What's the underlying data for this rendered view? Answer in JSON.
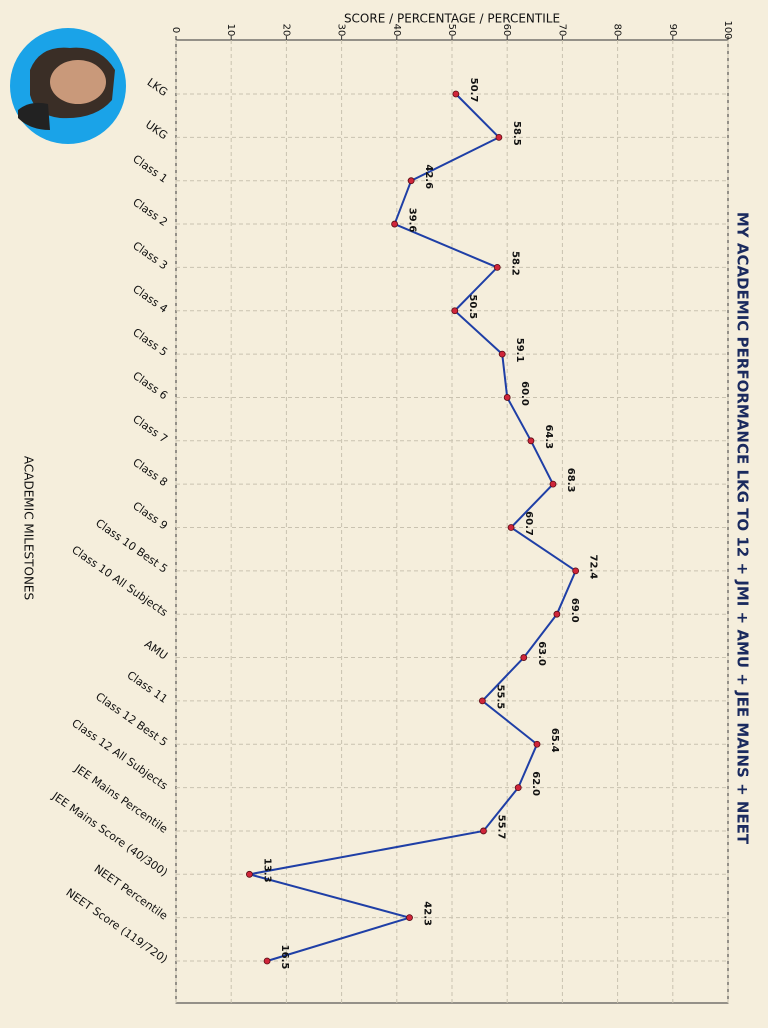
{
  "chart_data": {
    "type": "line",
    "title": "MY ACADEMIC PERFORMANCE LKG TO 12 + JMI + AMU + JEE MAINS + NEET",
    "y_label": "SCORE / PERCENTAGE / PERCENTILE",
    "x_label": "ACADEMIC MILESTONES",
    "categories": [
      "LKG",
      "UKG",
      "Class 1",
      "Class 2",
      "Class 3",
      "Class 4",
      "Class 5",
      "Class 6",
      "Class 7",
      "Class 8",
      "Class 9",
      "Class 10 Best 5",
      "Class 10 All Subjects",
      "AMU",
      "Class 11",
      "Class 12 Best 5",
      "Class 12 All Subjects",
      "JEE Mains Percentile",
      "JEE Mains Score (40/300)",
      "NEET Percentile",
      "NEET Score (119/720)"
    ],
    "values": [
      50.7,
      58.5,
      42.6,
      39.6,
      58.2,
      50.5,
      59.1,
      60.0,
      64.3,
      68.3,
      60.7,
      72.4,
      69.0,
      63.0,
      55.5,
      65.4,
      62.0,
      55.7,
      13.3,
      42.3,
      16.5
    ],
    "value_labels": [
      "50.7",
      "58.5",
      "42.6",
      "39.6",
      "58.2",
      "50.5",
      "59.1",
      "60.0",
      "64.3",
      "68.3",
      "60.7",
      "72.4",
      "69.0",
      "63.0",
      "55.5",
      "65.4",
      "62.0",
      "55.7",
      "13.3",
      "42.3",
      "16.5"
    ],
    "color": "#1f3fa6",
    "marker_color": "#d0253a",
    "ylim": [
      0,
      100
    ],
    "yticks": [
      0,
      10,
      20,
      30,
      40,
      50,
      60,
      70,
      80,
      90,
      100
    ],
    "grid": true
  }
}
